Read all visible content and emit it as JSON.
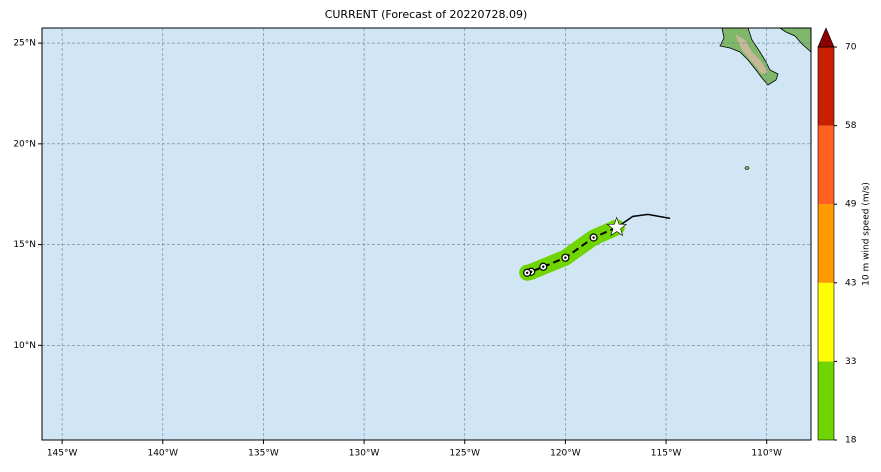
{
  "chart_data": {
    "type": "map",
    "title": "CURRENT (Forecast of 20220728.09)",
    "xlim": [
      -146.0,
      -107.8
    ],
    "ylim": [
      5.3,
      25.75
    ],
    "xticks": [
      {
        "value": -145,
        "label": "145°W"
      },
      {
        "value": -140,
        "label": "140°W"
      },
      {
        "value": -135,
        "label": "135°W"
      },
      {
        "value": -130,
        "label": "130°W"
      },
      {
        "value": -125,
        "label": "125°W"
      },
      {
        "value": -120,
        "label": "120°W"
      },
      {
        "value": -115,
        "label": "115°W"
      },
      {
        "value": -110,
        "label": "110°W"
      }
    ],
    "yticks": [
      {
        "value": 10,
        "label": "10°N"
      },
      {
        "value": 15,
        "label": "15°N"
      },
      {
        "value": 20,
        "label": "20°N"
      },
      {
        "value": 25,
        "label": "25°N"
      }
    ],
    "grid": true,
    "past_track": {
      "lon": [
        -117.45,
        -116.65,
        -115.9,
        -114.8
      ],
      "lat": [
        15.85,
        16.4,
        16.5,
        16.3
      ]
    },
    "forecast_track": {
      "lon": [
        -117.45,
        -118.6,
        -120.0,
        -121.1,
        -121.7,
        -121.9
      ],
      "lat": [
        15.85,
        15.35,
        14.35,
        13.9,
        13.65,
        13.6
      ]
    },
    "swath_color": "#6fd400",
    "colorbar": {
      "label": "10 m wind speed (m/s)",
      "ticks": [
        18,
        33,
        43,
        49,
        58,
        70
      ],
      "colors": [
        "#6fd400",
        "#ffff00",
        "#ff9a00",
        "#ff6020",
        "#c82000"
      ],
      "extend_color": "#8b0000"
    }
  }
}
